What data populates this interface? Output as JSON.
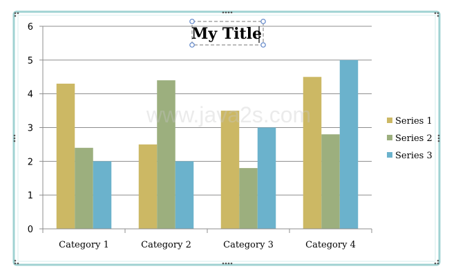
{
  "chart_data": {
    "type": "bar",
    "title": "My Title",
    "xlabel": "",
    "ylabel": "",
    "categories": [
      "Category 1",
      "Category 2",
      "Category 3",
      "Category 4"
    ],
    "series": [
      {
        "name": "Series 1",
        "values": [
          4.3,
          2.5,
          3.5,
          4.5
        ],
        "color": "#ccb864"
      },
      {
        "name": "Series 2",
        "values": [
          2.4,
          4.4,
          1.8,
          2.8
        ],
        "color": "#9caf7e"
      },
      {
        "name": "Series 3",
        "values": [
          2.0,
          2.0,
          3.0,
          5.0
        ],
        "color": "#6bb2cc"
      }
    ],
    "ylim": [
      0,
      6
    ],
    "yticks": [
      "0",
      "1",
      "2",
      "3",
      "4",
      "5",
      "6"
    ],
    "grid": true,
    "legend_position": "right"
  },
  "watermark": "www.java2s.com",
  "colors": {
    "frame_border": "#9fd2d2",
    "gridline": "#8c8c8c",
    "handle": "#5a82c8"
  }
}
